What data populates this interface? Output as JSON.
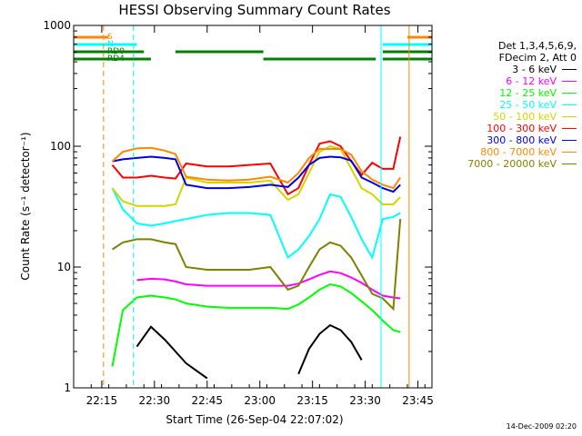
{
  "title": "HESSI Observing Summary Count Rates",
  "footer": "14-Dec-2009 02:20",
  "chart_data": {
    "type": "line",
    "title": "HESSI Observing Summary Count Rates",
    "xlabel": "Start Time (26-Sep-04 22:07:02)",
    "ylabel": "Count Rate (s⁻¹ detector⁻¹)",
    "yscale": "log",
    "ylim": [
      1,
      1000
    ],
    "xlim_minutes": [
      0,
      102
    ],
    "x_tick_minutes": [
      8,
      23,
      38,
      53,
      68,
      83,
      98
    ],
    "x_tick_labels": [
      "22:15",
      "22:30",
      "22:45",
      "23:00",
      "23:15",
      "23:30",
      "23:45"
    ],
    "y_ticks": [
      1,
      10,
      100,
      1000
    ],
    "y_tick_labels": [
      "1",
      "10",
      "100",
      "1000"
    ],
    "legend_header": [
      "Det 1,3,4,5,6,9,",
      "FDecim 2, Att 0"
    ],
    "x_minutes": [
      11,
      14,
      18,
      22,
      26,
      29,
      32,
      38,
      44,
      50,
      56,
      61,
      64,
      67,
      70,
      73,
      76,
      79,
      82,
      85,
      88,
      91,
      93
    ],
    "series": [
      {
        "name": "3 - 6 keV",
        "color": "#000000",
        "values": [
          null,
          null,
          2.2,
          3.2,
          2.5,
          2.0,
          1.6,
          1.2,
          null,
          null,
          null,
          null,
          1.3,
          2.1,
          2.8,
          3.3,
          3.0,
          2.4,
          1.7,
          null,
          null,
          null,
          null
        ]
      },
      {
        "name": "6 - 12 keV",
        "color": "#ff00ff",
        "values": [
          null,
          null,
          7.8,
          8.0,
          7.9,
          7.6,
          7.2,
          7.0,
          7.0,
          7.0,
          7.0,
          7.0,
          7.3,
          7.9,
          8.6,
          9.2,
          8.9,
          8.2,
          7.4,
          6.5,
          5.8,
          5.6,
          5.5
        ]
      },
      {
        "name": "12 - 25 keV",
        "color": "#00ff00",
        "values": [
          1.5,
          4.4,
          5.6,
          5.8,
          5.6,
          5.4,
          5.0,
          4.7,
          4.6,
          4.6,
          4.6,
          4.5,
          4.9,
          5.6,
          6.5,
          7.2,
          6.9,
          6.1,
          5.2,
          4.4,
          3.6,
          3.0,
          2.9
        ]
      },
      {
        "name": "25 - 50 keV",
        "color": "#00ffff",
        "values": [
          45,
          30,
          23,
          22,
          23,
          24,
          25,
          27,
          28,
          28,
          27,
          12,
          14,
          18,
          25,
          40,
          38,
          26,
          17,
          12,
          25,
          26,
          28
        ]
      },
      {
        "name": "50 - 100 keV",
        "color": "#d4d400",
        "values": [
          45,
          35,
          32,
          32,
          32,
          33,
          55,
          50,
          50,
          50,
          52,
          36,
          40,
          60,
          90,
          100,
          95,
          65,
          45,
          40,
          33,
          33,
          38
        ]
      },
      {
        "name": "100 - 300 keV",
        "color": "#ff0000",
        "values": [
          70,
          55,
          55,
          57,
          55,
          54,
          72,
          68,
          68,
          70,
          72,
          40,
          45,
          70,
          105,
          110,
          100,
          75,
          58,
          73,
          65,
          65,
          120
        ]
      },
      {
        "name": "300 - 800 keV",
        "color": "#0000dd",
        "values": [
          75,
          78,
          80,
          82,
          80,
          78,
          48,
          45,
          45,
          46,
          48,
          46,
          55,
          70,
          80,
          82,
          81,
          76,
          55,
          50,
          45,
          42,
          48
        ]
      },
      {
        "name": "800 - 7000 keV",
        "color": "#ff8800",
        "values": [
          75,
          90,
          96,
          97,
          92,
          86,
          56,
          53,
          52,
          53,
          56,
          50,
          60,
          80,
          95,
          95,
          95,
          85,
          62,
          53,
          48,
          45,
          55
        ]
      },
      {
        "name": "7000 - 20000 keV",
        "color": "#808000",
        "values": [
          14,
          16,
          17,
          17,
          16,
          15.5,
          10,
          9.5,
          9.5,
          9.5,
          10,
          6.5,
          7,
          10,
          14,
          16,
          15,
          12,
          8.5,
          6,
          5.5,
          4.5,
          25
        ]
      }
    ],
    "flag_bars": [
      {
        "label": "S",
        "color": "#ff8800",
        "segments": [
          [
            0,
            10
          ],
          [
            95,
            102
          ]
        ]
      },
      {
        "label": "N",
        "color": "#00ffff",
        "segments": [
          [
            0,
            18
          ],
          [
            88,
            102
          ]
        ]
      },
      {
        "label": "RD0",
        "color": "#008000",
        "segments": [
          [
            0,
            20
          ],
          [
            29,
            54
          ],
          [
            88,
            102
          ]
        ]
      },
      {
        "label": "RD4",
        "color": "#008000",
        "segments": [
          [
            0,
            22
          ],
          [
            54,
            86
          ],
          [
            88,
            102
          ]
        ]
      }
    ],
    "vertical_lines": [
      {
        "x": 0,
        "color": "#00ffff",
        "style": "solid"
      },
      {
        "x": 8.5,
        "color": "#ff8800",
        "style": "dash"
      },
      {
        "x": 17,
        "color": "#00ffff",
        "style": "dash"
      },
      {
        "x": 87.5,
        "color": "#00ffff",
        "style": "solid"
      },
      {
        "x": 95.5,
        "color": "#ff8800",
        "style": "solid"
      },
      {
        "x": 102,
        "color": "#ff8800",
        "style": "dash"
      },
      {
        "x": 102,
        "color": "#00ffff",
        "style": "dash"
      }
    ]
  }
}
